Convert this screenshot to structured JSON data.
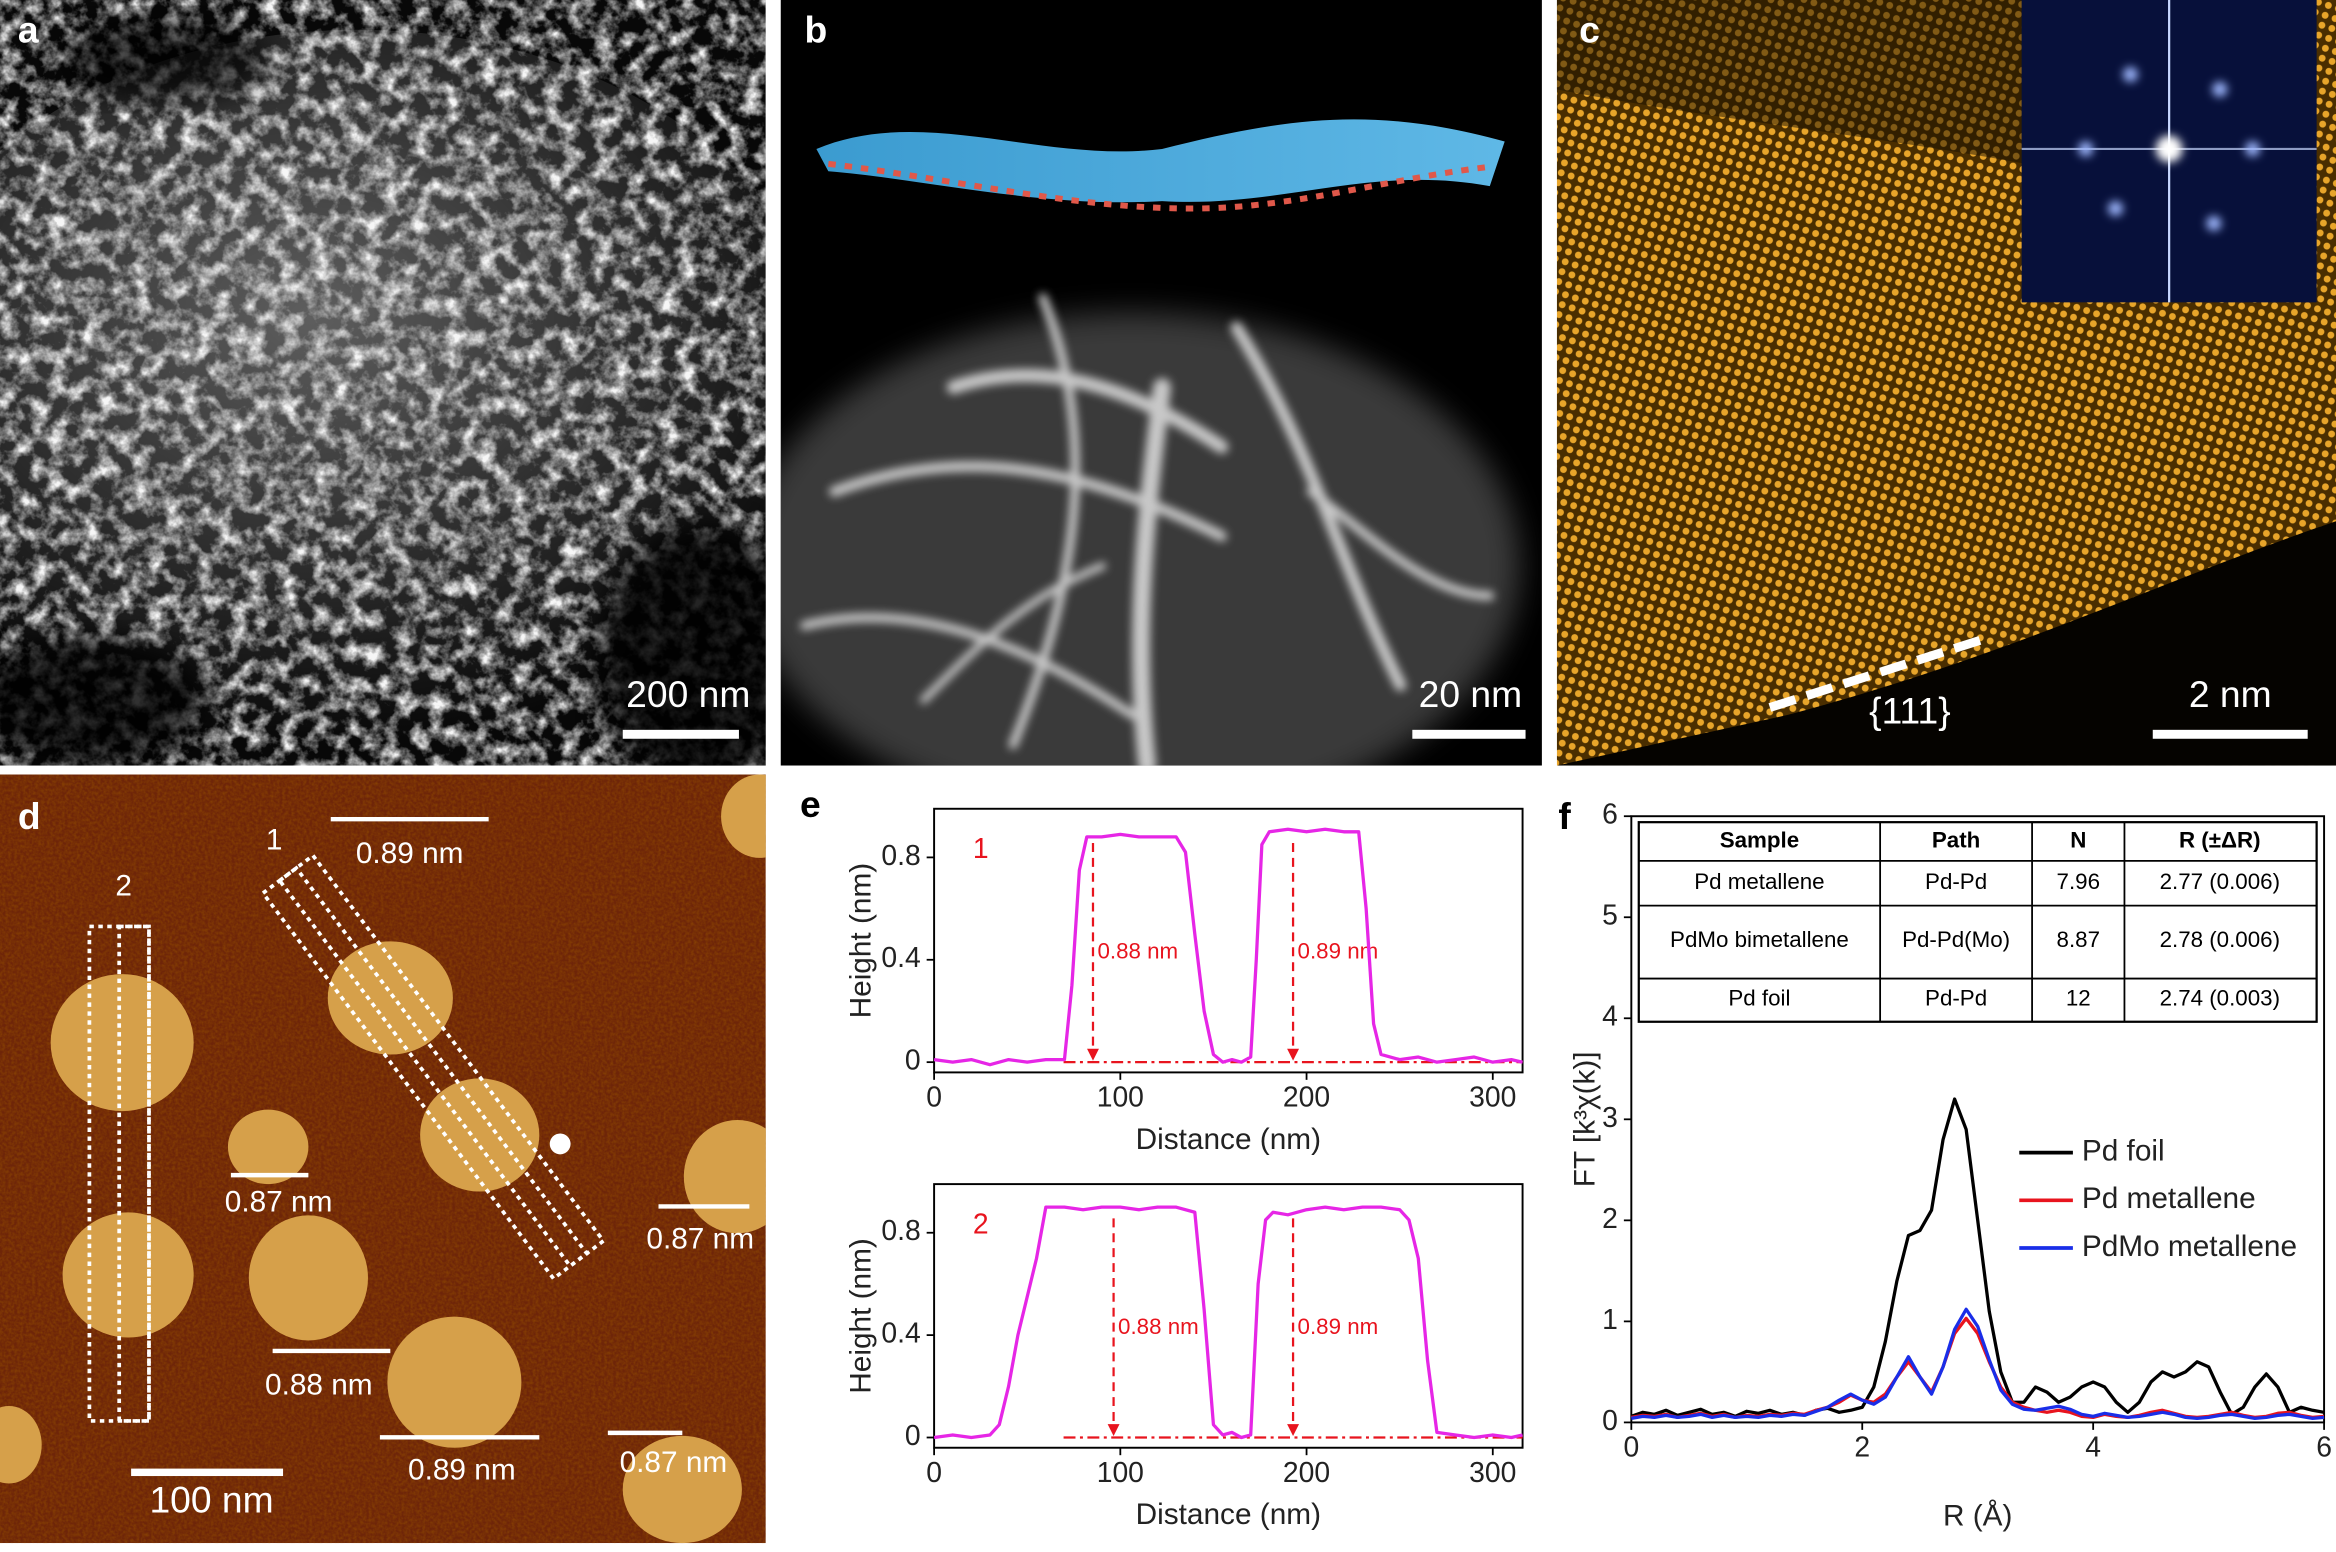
{
  "panels": {
    "a": {
      "letter": "a",
      "scale_bar": "200 nm"
    },
    "b": {
      "letter": "b",
      "scale_bar": "20 nm"
    },
    "c": {
      "letter": "c",
      "scale_bar": "2 nm",
      "facet": "{111}"
    },
    "d": {
      "letter": "d",
      "scale_bar": "100 nm",
      "regions": [
        "1",
        "2"
      ],
      "heights": [
        "0.89 nm",
        "0.87 nm",
        "0.87 nm",
        "0.88 nm",
        "0.89 nm",
        "0.87 nm"
      ]
    },
    "e": {
      "letter": "e"
    },
    "f": {
      "letter": "f"
    }
  },
  "chart_data": [
    {
      "type": "line",
      "xlabel": "Distance (nm)",
      "ylabel": "Height (nm)",
      "color": "#e626e6",
      "annotations": [
        "1",
        "0.88 nm",
        "0.89 nm"
      ],
      "x": [
        0,
        10,
        20,
        30,
        40,
        50,
        60,
        70,
        74,
        78,
        82,
        90,
        100,
        110,
        120,
        130,
        135,
        140,
        145,
        150,
        155,
        160,
        165,
        170,
        173,
        176,
        180,
        190,
        200,
        210,
        220,
        228,
        232,
        236,
        240,
        250,
        260,
        270,
        280,
        290,
        300,
        310,
        316
      ],
      "values": [
        0.01,
        0,
        0.01,
        -0.01,
        0.01,
        0,
        0.01,
        0.01,
        0.3,
        0.75,
        0.88,
        0.88,
        0.89,
        0.88,
        0.88,
        0.88,
        0.82,
        0.5,
        0.2,
        0.03,
        0,
        0.01,
        0,
        0.02,
        0.4,
        0.85,
        0.9,
        0.91,
        0.9,
        0.91,
        0.9,
        0.9,
        0.6,
        0.15,
        0.03,
        0.01,
        0.02,
        0,
        0.01,
        0.02,
        0,
        0.01,
        0
      ],
      "xlim": [
        0,
        316
      ],
      "ylim": [
        -0.04,
        0.99
      ],
      "xticks": [
        0,
        100,
        200,
        300
      ],
      "yticks": [
        0,
        0.4,
        0.8
      ]
    },
    {
      "type": "line",
      "xlabel": "Distance (nm)",
      "ylabel": "Height (nm)",
      "color": "#e626e6",
      "annotations": [
        "2",
        "0.88 nm",
        "0.89 nm"
      ],
      "x": [
        0,
        10,
        20,
        30,
        35,
        40,
        45,
        50,
        55,
        60,
        70,
        80,
        90,
        100,
        110,
        120,
        130,
        140,
        145,
        150,
        155,
        160,
        165,
        170,
        174,
        178,
        182,
        190,
        200,
        210,
        220,
        230,
        240,
        250,
        255,
        260,
        265,
        270,
        280,
        290,
        300,
        310,
        316
      ],
      "values": [
        0,
        0.01,
        0,
        0.01,
        0.05,
        0.2,
        0.4,
        0.55,
        0.7,
        0.9,
        0.9,
        0.89,
        0.9,
        0.9,
        0.89,
        0.9,
        0.9,
        0.88,
        0.5,
        0.05,
        0.01,
        0.02,
        0,
        0.01,
        0.6,
        0.85,
        0.88,
        0.87,
        0.89,
        0.9,
        0.89,
        0.9,
        0.9,
        0.89,
        0.85,
        0.7,
        0.3,
        0.02,
        0.01,
        0,
        0.01,
        0,
        0.01
      ],
      "xlim": [
        0,
        316
      ],
      "ylim": [
        -0.04,
        0.99
      ],
      "xticks": [
        0,
        100,
        200,
        300
      ],
      "yticks": [
        0,
        0.4,
        0.8
      ]
    },
    {
      "type": "line",
      "xlabel": "R (Å)",
      "ylabel": "FT [k³χ(k)]",
      "legend": "right",
      "table": {
        "header": [
          "Sample",
          "Path",
          "N",
          "R (±ΔR)"
        ],
        "rows": [
          [
            "Pd metallene",
            "Pd-Pd",
            "7.96",
            "2.77 (0.006)"
          ],
          [
            "PdMo bimetallene",
            "Pd-Pd(Mo)",
            "8.87",
            "2.78 (0.006)"
          ],
          [
            "Pd foil",
            "Pd-Pd",
            "12",
            "2.74 (0.003)"
          ]
        ]
      },
      "x": [
        0,
        0.1,
        0.2,
        0.3,
        0.4,
        0.5,
        0.6,
        0.7,
        0.8,
        0.9,
        1,
        1.1,
        1.2,
        1.3,
        1.4,
        1.5,
        1.6,
        1.7,
        1.8,
        1.9,
        2,
        2.1,
        2.2,
        2.3,
        2.4,
        2.5,
        2.6,
        2.7,
        2.8,
        2.9,
        3,
        3.1,
        3.2,
        3.3,
        3.4,
        3.5,
        3.6,
        3.7,
        3.8,
        3.9,
        4,
        4.1,
        4.2,
        4.3,
        4.4,
        4.5,
        4.6,
        4.7,
        4.8,
        4.9,
        5,
        5.1,
        5.2,
        5.3,
        5.4,
        5.5,
        5.6,
        5.7,
        5.8,
        5.9,
        6
      ],
      "series": [
        {
          "name": "Pd foil",
          "color": "#000000",
          "values": [
            0.06,
            0.1,
            0.08,
            0.12,
            0.07,
            0.1,
            0.13,
            0.08,
            0.1,
            0.06,
            0.11,
            0.09,
            0.12,
            0.08,
            0.1,
            0.07,
            0.12,
            0.14,
            0.1,
            0.12,
            0.15,
            0.35,
            0.8,
            1.4,
            1.85,
            1.9,
            2.1,
            2.8,
            3.2,
            2.9,
            2.0,
            1.1,
            0.5,
            0.2,
            0.2,
            0.35,
            0.3,
            0.2,
            0.25,
            0.35,
            0.4,
            0.35,
            0.2,
            0.1,
            0.2,
            0.4,
            0.5,
            0.45,
            0.5,
            0.6,
            0.55,
            0.3,
            0.08,
            0.15,
            0.35,
            0.48,
            0.35,
            0.1,
            0.15,
            0.12,
            0.1
          ]
        },
        {
          "name": "Pd metallene",
          "color": "#e8141e",
          "values": [
            0.05,
            0.07,
            0.06,
            0.08,
            0.05,
            0.07,
            0.09,
            0.06,
            0.08,
            0.05,
            0.07,
            0.06,
            0.08,
            0.07,
            0.09,
            0.08,
            0.12,
            0.15,
            0.2,
            0.27,
            0.22,
            0.2,
            0.28,
            0.45,
            0.6,
            0.45,
            0.3,
            0.55,
            0.88,
            1.03,
            0.88,
            0.6,
            0.35,
            0.2,
            0.15,
            0.12,
            0.1,
            0.12,
            0.1,
            0.06,
            0.05,
            0.08,
            0.06,
            0.05,
            0.07,
            0.1,
            0.12,
            0.09,
            0.06,
            0.05,
            0.06,
            0.08,
            0.1,
            0.07,
            0.05,
            0.06,
            0.09,
            0.1,
            0.07,
            0.05,
            0.06
          ]
        },
        {
          "name": "PdMo metallene",
          "color": "#1a2ee8",
          "values": [
            0.04,
            0.06,
            0.05,
            0.07,
            0.05,
            0.06,
            0.08,
            0.05,
            0.07,
            0.05,
            0.06,
            0.05,
            0.07,
            0.06,
            0.08,
            0.07,
            0.11,
            0.15,
            0.22,
            0.28,
            0.22,
            0.18,
            0.25,
            0.45,
            0.65,
            0.45,
            0.28,
            0.55,
            0.92,
            1.12,
            0.95,
            0.62,
            0.32,
            0.18,
            0.13,
            0.12,
            0.14,
            0.16,
            0.13,
            0.08,
            0.06,
            0.09,
            0.07,
            0.05,
            0.06,
            0.08,
            0.1,
            0.08,
            0.05,
            0.04,
            0.05,
            0.07,
            0.08,
            0.06,
            0.04,
            0.05,
            0.07,
            0.08,
            0.06,
            0.04,
            0.05
          ]
        }
      ],
      "xlim": [
        0,
        6
      ],
      "ylim": [
        0,
        6
      ],
      "xticks": [
        0,
        2,
        4,
        6
      ],
      "yticks": [
        0,
        1,
        2,
        3,
        4,
        5,
        6
      ]
    }
  ]
}
